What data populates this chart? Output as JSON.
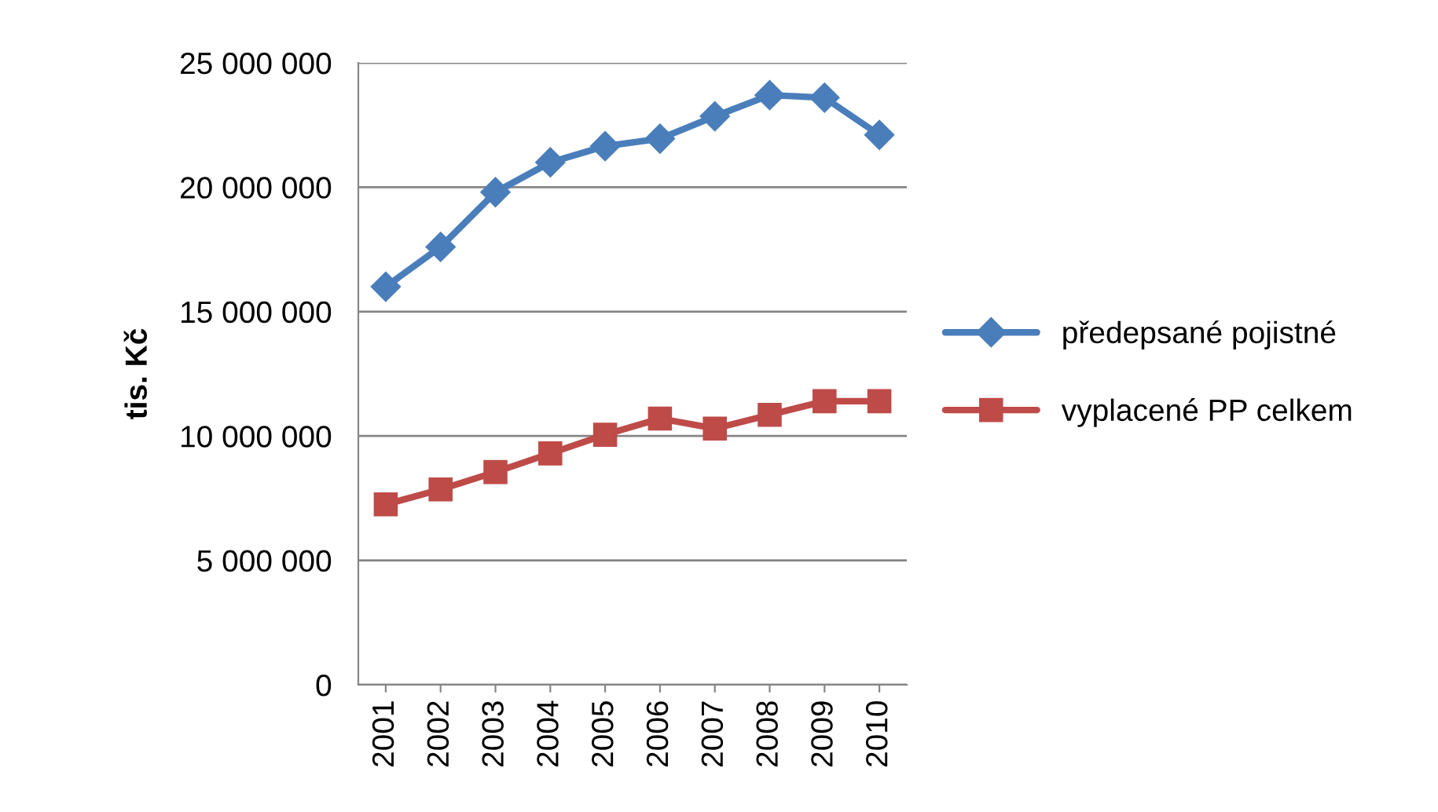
{
  "chart_data": {
    "type": "line",
    "ylabel": "tis. Kč",
    "categories": [
      "2001",
      "2002",
      "2003",
      "2004",
      "2005",
      "2006",
      "2007",
      "2008",
      "2009",
      "2010"
    ],
    "series": [
      {
        "name": "předepsané pojistné",
        "color": "#4a7ebb",
        "marker": "diamond",
        "values": [
          16000000,
          17600000,
          19800000,
          21000000,
          21650000,
          21950000,
          22850000,
          23700000,
          23600000,
          22100000
        ]
      },
      {
        "name": "vyplacené PP celkem",
        "color": "#be4b48",
        "marker": "square",
        "values": [
          7250000,
          7850000,
          8550000,
          9300000,
          10050000,
          10700000,
          10300000,
          10850000,
          11400000,
          11400000
        ]
      }
    ],
    "ylim": [
      0,
      25000000
    ],
    "yticks": [
      {
        "value": 0,
        "label": "0"
      },
      {
        "value": 5000000,
        "label": "5 000 000"
      },
      {
        "value": 10000000,
        "label": "10 000 000"
      },
      {
        "value": 15000000,
        "label": "15 000 000"
      },
      {
        "value": 20000000,
        "label": "20 000 000"
      },
      {
        "value": 25000000,
        "label": "25 000 000"
      }
    ],
    "grid": "y",
    "legend": "right"
  }
}
